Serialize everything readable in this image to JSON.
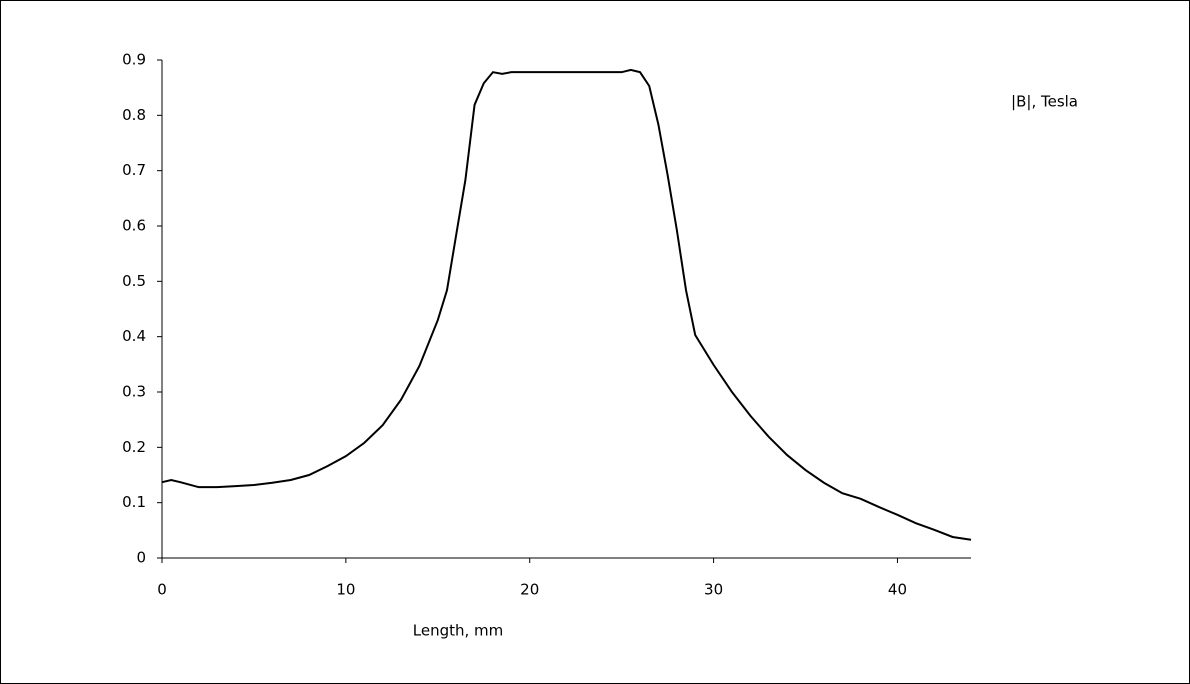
{
  "chart_data": {
    "type": "line",
    "x_label": "Length, mm",
    "x": [
      0,
      0.5,
      1,
      2,
      3,
      4,
      5,
      6,
      7,
      8,
      9,
      10,
      11,
      12,
      13,
      14,
      15,
      15.5,
      16,
      16.5,
      17,
      17.5,
      18,
      18.5,
      19,
      20,
      21,
      22,
      23,
      24,
      25,
      25.5,
      26,
      26.5,
      27,
      27.5,
      28,
      28.5,
      29,
      30,
      31,
      32,
      33,
      34,
      35,
      36,
      37,
      38,
      39,
      40,
      41,
      42,
      43,
      44
    ],
    "series": [
      {
        "name": "|B|, Tesla",
        "color": "#000000",
        "values": [
          0.137,
          0.141,
          0.137,
          0.128,
          0.128,
          0.13,
          0.132,
          0.136,
          0.141,
          0.15,
          0.166,
          0.184,
          0.208,
          0.24,
          0.286,
          0.347,
          0.43,
          0.484,
          0.584,
          0.683,
          0.819,
          0.858,
          0.878,
          0.875,
          0.878,
          0.878,
          0.878,
          0.878,
          0.878,
          0.878,
          0.878,
          0.882,
          0.878,
          0.853,
          0.783,
          0.692,
          0.593,
          0.484,
          0.403,
          0.349,
          0.3,
          0.257,
          0.219,
          0.186,
          0.159,
          0.136,
          0.117,
          0.107,
          0.092,
          0.078,
          0.063,
          0.051,
          0.038,
          0.033
        ]
      }
    ],
    "xlim": [
      0,
      44
    ],
    "xticks": [
      0,
      10,
      20,
      30,
      40
    ],
    "ylim": [
      0,
      0.9
    ],
    "yticks": [
      0,
      0.1,
      0.2,
      0.3,
      0.4,
      0.5,
      0.6,
      0.7,
      0.8,
      0.9
    ],
    "grid": false,
    "legend": "top-right"
  }
}
